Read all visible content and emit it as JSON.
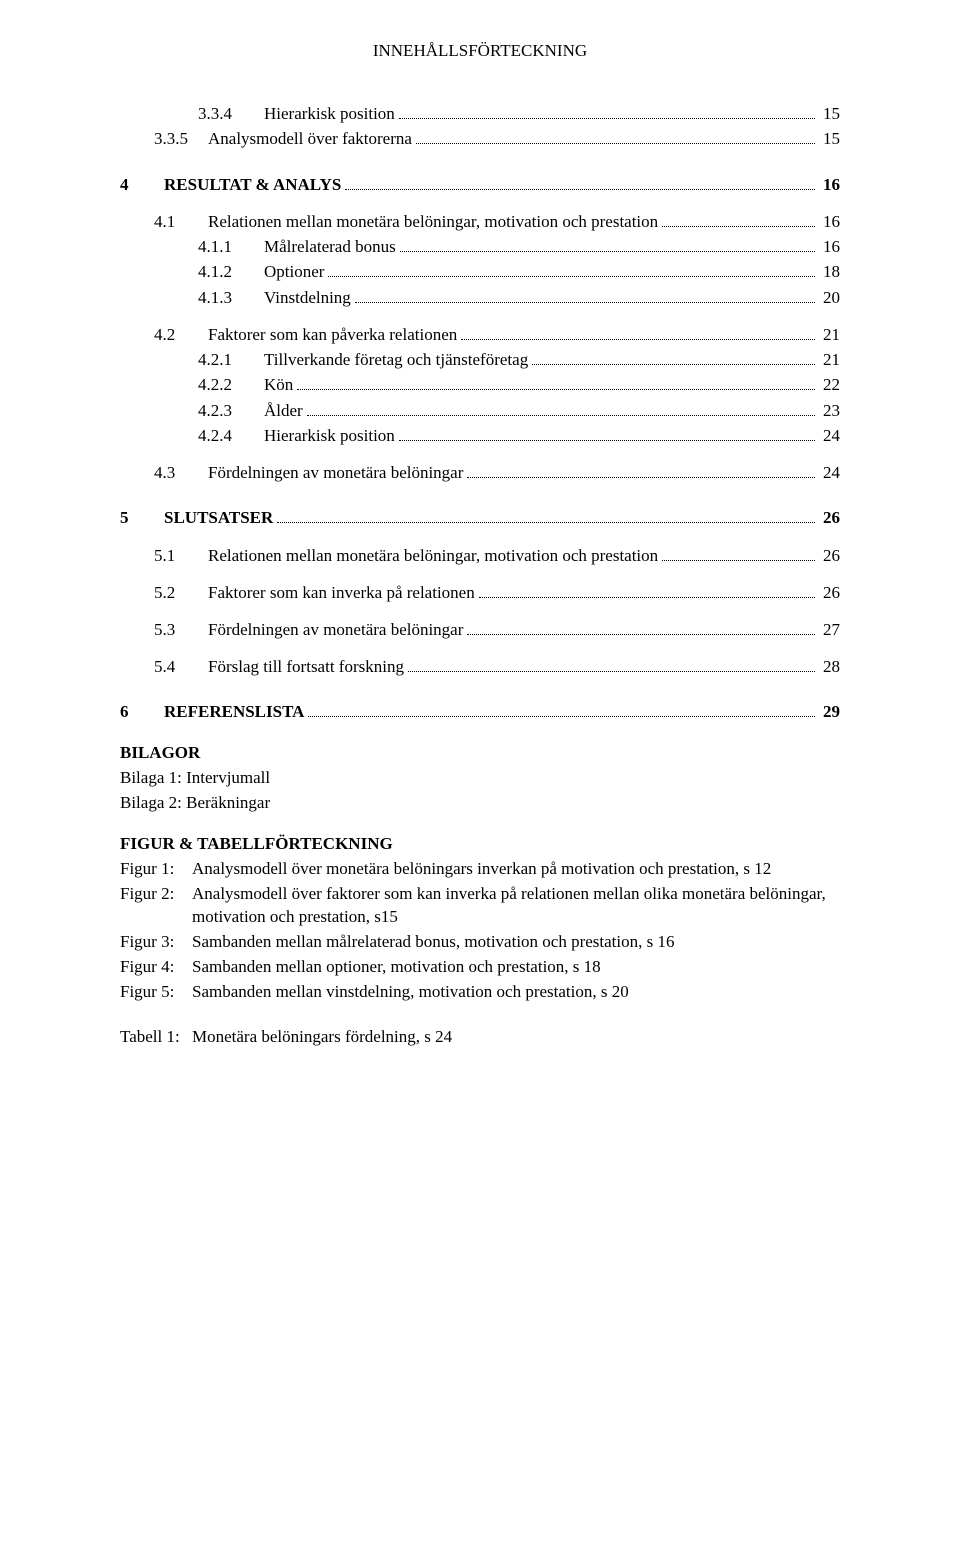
{
  "header": "INNEHÅLLSFÖRTECKNING",
  "toc": [
    {
      "indent": 2,
      "num": "3.3.4",
      "label": "Hierarkisk position",
      "page": "15",
      "bold": false
    },
    {
      "indent": 1,
      "num": "3.3.5",
      "label": "Analysmodell över faktorerna",
      "page": "15",
      "bold": false
    },
    {
      "gap": true
    },
    {
      "indent": 0,
      "num": "4",
      "label": "RESULTAT & ANALYS",
      "page": "16",
      "bold": true
    },
    {
      "mini": true
    },
    {
      "indent": 1,
      "num": "4.1",
      "label": "Relationen mellan monetära belöningar, motivation och prestation",
      "page": "16",
      "bold": false
    },
    {
      "indent": 2,
      "num": "4.1.1",
      "label": "Målrelaterad bonus",
      "page": "16",
      "bold": false
    },
    {
      "indent": 2,
      "num": "4.1.2",
      "label": "Optioner",
      "page": "18",
      "bold": false
    },
    {
      "indent": 2,
      "num": "4.1.3",
      "label": "Vinstdelning",
      "page": "20",
      "bold": false
    },
    {
      "mini": true
    },
    {
      "indent": 1,
      "num": "4.2",
      "label": "Faktorer som kan påverka relationen",
      "page": "21",
      "bold": false
    },
    {
      "indent": 2,
      "num": "4.2.1",
      "label": "Tillverkande företag och tjänsteföretag",
      "page": "21",
      "bold": false
    },
    {
      "indent": 2,
      "num": "4.2.2",
      "label": "Kön",
      "page": "22",
      "bold": false
    },
    {
      "indent": 2,
      "num": "4.2.3",
      "label": "Ålder",
      "page": "23",
      "bold": false
    },
    {
      "indent": 2,
      "num": "4.2.4",
      "label": "Hierarkisk position",
      "page": "24",
      "bold": false
    },
    {
      "mini": true
    },
    {
      "indent": 1,
      "num": "4.3",
      "label": "Fördelningen av monetära belöningar",
      "page": "24",
      "bold": false
    },
    {
      "gap": true
    },
    {
      "indent": 0,
      "num": "5",
      "label": "SLUTSATSER",
      "page": "26",
      "bold": true
    },
    {
      "mini": true
    },
    {
      "indent": 1,
      "num": "5.1",
      "label": "Relationen mellan monetära belöningar, motivation och prestation",
      "page": "26",
      "bold": false
    },
    {
      "mini": true
    },
    {
      "indent": 1,
      "num": "5.2",
      "label": "Faktorer som kan inverka på relationen",
      "page": "26",
      "bold": false
    },
    {
      "mini": true
    },
    {
      "indent": 1,
      "num": "5.3",
      "label": "Fördelningen av monetära belöningar",
      "page": "27",
      "bold": false
    },
    {
      "mini": true
    },
    {
      "indent": 1,
      "num": "5.4",
      "label": "Förslag till fortsatt forskning",
      "page": "28",
      "bold": false
    },
    {
      "gap": true
    },
    {
      "indent": 0,
      "num": "6",
      "label": "REFERENSLISTA",
      "page": "29",
      "bold": true
    }
  ],
  "bilagor": {
    "heading": "BILAGOR",
    "items": [
      "Bilaga 1: Intervjumall",
      "Bilaga 2: Beräkningar"
    ]
  },
  "figtab": {
    "heading": "FIGUR & TABELLFÖRTECKNING",
    "figures": [
      {
        "label": "Figur 1:",
        "text": "Analysmodell över monetära belöningars inverkan på motivation och prestation, s 12"
      },
      {
        "label": "Figur 2:",
        "text": "Analysmodell över faktorer som kan inverka på relationen mellan olika monetära  belöningar, motivation och prestation, s15"
      },
      {
        "label": "Figur 3:",
        "text": "Sambanden mellan målrelaterad bonus, motivation och prestation, s 16"
      },
      {
        "label": "Figur 4:",
        "text": "Sambanden mellan optioner, motivation och prestation, s 18"
      },
      {
        "label": "Figur 5:",
        "text": "Sambanden mellan vinstdelning, motivation och prestation, s 20"
      }
    ],
    "tables": [
      {
        "label": "Tabell 1:",
        "text": "Monetära belöningars fördelning, s 24"
      }
    ]
  }
}
